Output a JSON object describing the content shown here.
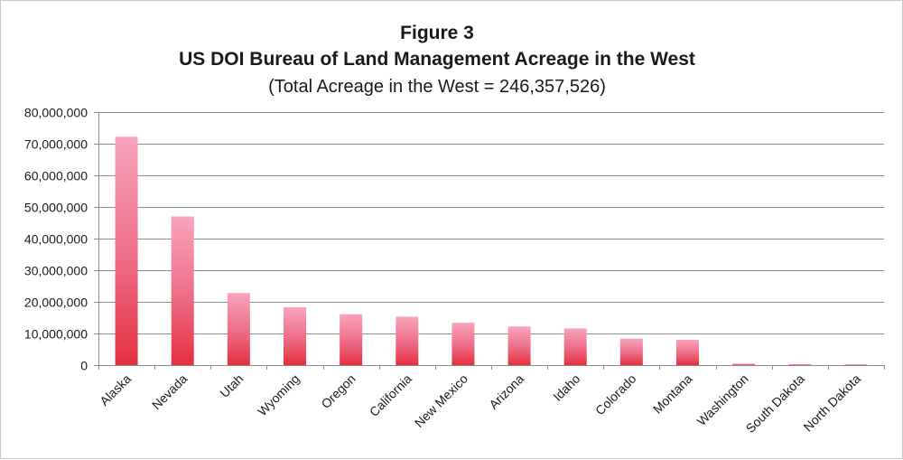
{
  "chart_data": {
    "type": "bar",
    "title_line1": "Figure 3",
    "title_line2": "US DOI Bureau of Land Management Acreage in the West",
    "subtitle": "(Total Acreage in the West = 246,357,526)",
    "xlabel": "",
    "ylabel": "",
    "ylim": [
      0,
      80000000
    ],
    "y_ticks": [
      "0",
      "10,000,000",
      "20,000,000",
      "30,000,000",
      "40,000,000",
      "50,000,000",
      "60,000,000",
      "70,000,000",
      "80,000,000"
    ],
    "y_tick_values": [
      0,
      10000000,
      20000000,
      30000000,
      40000000,
      50000000,
      60000000,
      70000000,
      80000000
    ],
    "grid": true,
    "legend": "none",
    "categories": [
      "Alaska",
      "Nevada",
      "Utah",
      "Wyoming",
      "Oregon",
      "California",
      "New Mexico",
      "Arizona",
      "Idaho",
      "Colorado",
      "Montana",
      "Washington",
      "South Dakota",
      "North Dakota"
    ],
    "values": [
      72200000,
      47000000,
      22800000,
      18300000,
      16100000,
      15300000,
      13400000,
      12200000,
      11600000,
      8400000,
      8000000,
      430000,
      270000,
      58000
    ],
    "colors": {
      "bar_top": "#f9a4bd",
      "bar_bottom": "#e3303d",
      "grid": "#8c8c8c",
      "text": "#1a1a1a"
    }
  }
}
